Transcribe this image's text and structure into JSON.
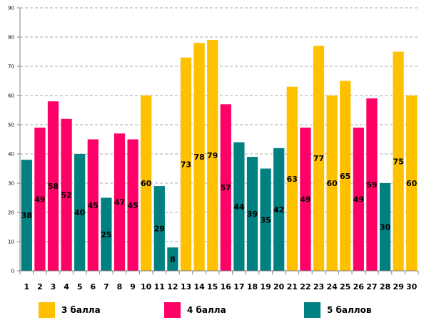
{
  "chart_data": {
    "type": "bar",
    "categories": [
      "1",
      "2",
      "3",
      "4",
      "5",
      "6",
      "7",
      "8",
      "9",
      "10",
      "11",
      "12",
      "13",
      "14",
      "15",
      "16",
      "17",
      "18",
      "19",
      "20",
      "21",
      "22",
      "23",
      "24",
      "25",
      "26",
      "27",
      "28",
      "29",
      "30"
    ],
    "values": [
      38,
      49,
      58,
      52,
      40,
      45,
      25,
      47,
      45,
      60,
      29,
      8,
      73,
      78,
      79,
      57,
      44,
      39,
      35,
      42,
      63,
      49,
      77,
      60,
      65,
      49,
      59,
      30,
      75,
      60
    ],
    "groups": [
      "5",
      "4",
      "4",
      "4",
      "5",
      "4",
      "5",
      "4",
      "4",
      "3",
      "5",
      "5",
      "3",
      "3",
      "3",
      "4",
      "5",
      "5",
      "5",
      "5",
      "3",
      "4",
      "3",
      "3",
      "3",
      "4",
      "4",
      "5",
      "3",
      "3"
    ],
    "ylim": [
      0,
      90
    ],
    "yticks": [
      "0",
      "10",
      "20",
      "30",
      "40",
      "50",
      "60",
      "70",
      "80",
      "90"
    ],
    "grid": true,
    "legend_position": "bottom",
    "legend": [
      {
        "key": "3",
        "label": "3 балла",
        "color": "#FFC000"
      },
      {
        "key": "4",
        "label": "4 балла",
        "color": "#FF0066"
      },
      {
        "key": "5",
        "label": "5 баллов",
        "color": "#008080"
      }
    ]
  }
}
